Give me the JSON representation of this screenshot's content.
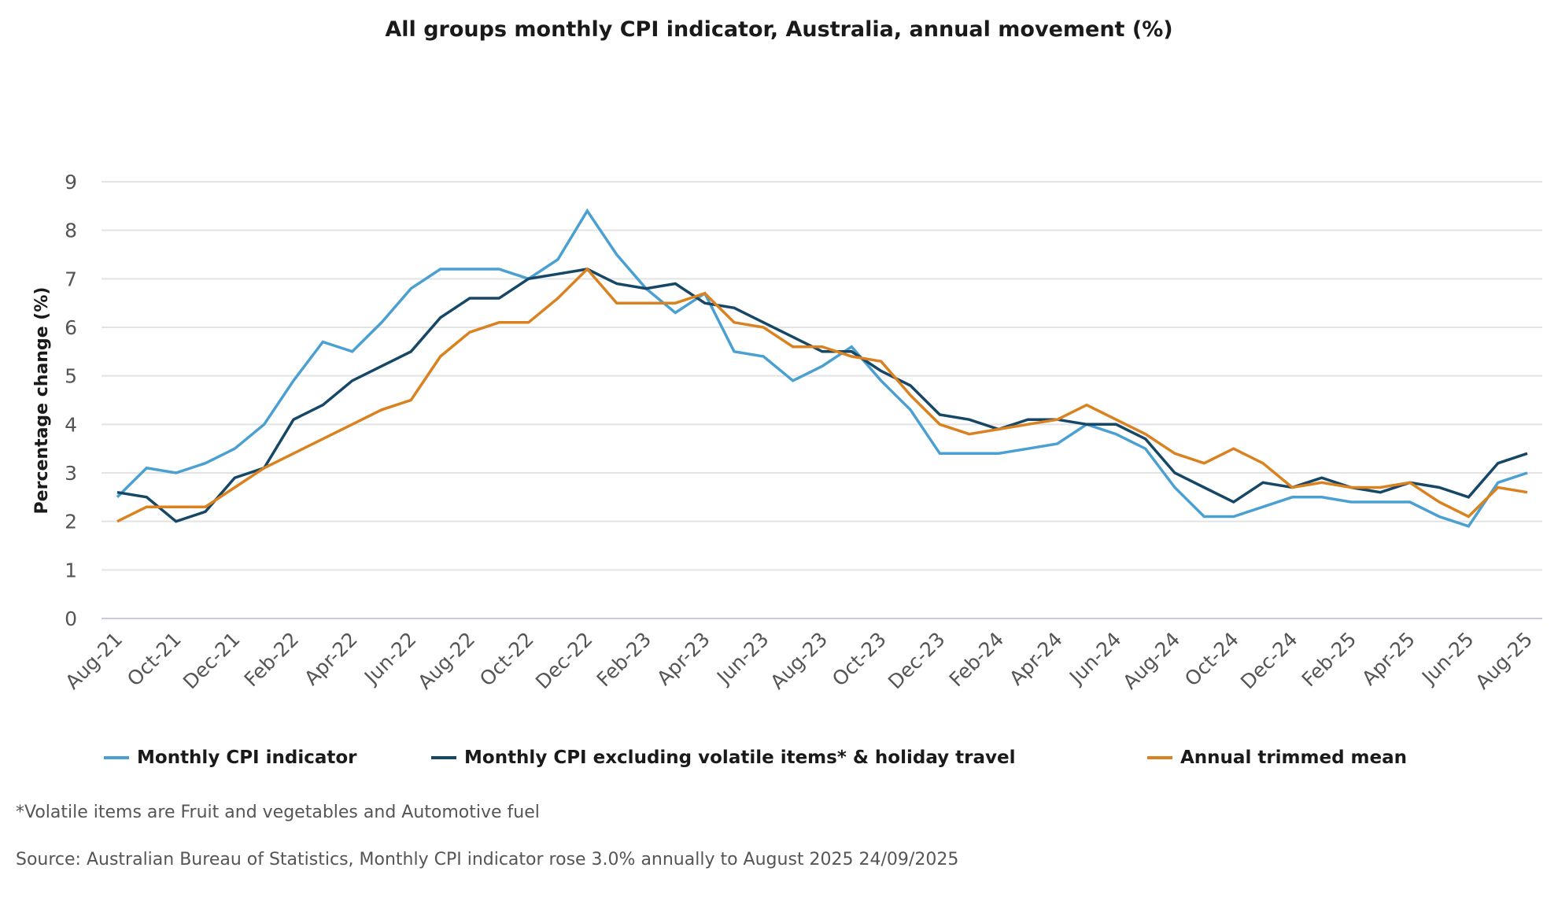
{
  "chart_data": {
    "type": "line",
    "title": "All groups monthly CPI indicator, Australia, annual movement (%)",
    "ylabel": "Percentage change (%)",
    "xlabel": "",
    "ylim": [
      0,
      9
    ],
    "yticks": [
      "0",
      "1",
      "2",
      "3",
      "4",
      "5",
      "6",
      "7",
      "8",
      "9"
    ],
    "grid": true,
    "legend_position": "bottom",
    "x": [
      "Aug-21",
      "Sep-21",
      "Oct-21",
      "Nov-21",
      "Dec-21",
      "Jan-22",
      "Feb-22",
      "Mar-22",
      "Apr-22",
      "May-22",
      "Jun-22",
      "Jul-22",
      "Aug-22",
      "Sep-22",
      "Oct-22",
      "Nov-22",
      "Dec-22",
      "Jan-23",
      "Feb-23",
      "Mar-23",
      "Apr-23",
      "May-23",
      "Jun-23",
      "Jul-23",
      "Aug-23",
      "Sep-23",
      "Oct-23",
      "Nov-23",
      "Dec-23",
      "Jan-24",
      "Feb-24",
      "Mar-24",
      "Apr-24",
      "May-24",
      "Jun-24",
      "Jul-24",
      "Aug-24",
      "Sep-24",
      "Oct-24",
      "Nov-24",
      "Dec-24",
      "Jan-25",
      "Feb-25",
      "Mar-25",
      "Apr-25",
      "May-25",
      "Jun-25",
      "Jul-25",
      "Aug-25"
    ],
    "xtick_labels": [
      "Aug-21",
      "Oct-21",
      "Dec-21",
      "Feb-22",
      "Apr-22",
      "Jun-22",
      "Aug-22",
      "Oct-22",
      "Dec-22",
      "Feb-23",
      "Apr-23",
      "Jun-23",
      "Aug-23",
      "Oct-23",
      "Dec-23",
      "Feb-24",
      "Apr-24",
      "Jun-24",
      "Aug-24",
      "Oct-24",
      "Dec-24",
      "Feb-25",
      "Apr-25",
      "Jun-25",
      "Aug-25"
    ],
    "series": [
      {
        "name": "Monthly CPI indicator",
        "color": "#4aa0d0",
        "values": [
          2.5,
          3.1,
          3.0,
          3.2,
          3.5,
          4.0,
          4.9,
          5.7,
          5.5,
          6.1,
          6.8,
          7.2,
          7.2,
          7.2,
          7.0,
          7.4,
          8.4,
          7.5,
          6.8,
          6.3,
          6.7,
          5.5,
          5.4,
          4.9,
          5.2,
          5.6,
          4.9,
          4.3,
          3.4,
          3.4,
          3.4,
          3.5,
          3.6,
          4.0,
          3.8,
          3.5,
          2.7,
          2.1,
          2.1,
          2.3,
          2.5,
          2.5,
          2.4,
          2.4,
          2.4,
          2.1,
          1.9,
          2.8,
          3.0
        ]
      },
      {
        "name": "Monthly CPI excluding volatile items* & holiday travel",
        "color": "#164766",
        "values": [
          2.6,
          2.5,
          2.0,
          2.2,
          2.9,
          3.1,
          4.1,
          4.4,
          4.9,
          5.2,
          5.5,
          6.2,
          6.6,
          6.6,
          7.0,
          7.1,
          7.2,
          6.9,
          6.8,
          6.9,
          6.5,
          6.4,
          6.1,
          5.8,
          5.5,
          5.5,
          5.1,
          4.8,
          4.2,
          4.1,
          3.9,
          4.1,
          4.1,
          4.0,
          4.0,
          3.7,
          3.0,
          2.7,
          2.4,
          2.8,
          2.7,
          2.9,
          2.7,
          2.6,
          2.8,
          2.7,
          2.5,
          3.2,
          3.4
        ]
      },
      {
        "name": "Annual trimmed mean",
        "color": "#d9821f",
        "values": [
          2.0,
          2.3,
          2.3,
          2.3,
          2.7,
          3.1,
          3.4,
          3.7,
          4.0,
          4.3,
          4.5,
          5.4,
          5.9,
          6.1,
          6.1,
          6.6,
          7.2,
          6.5,
          6.5,
          6.5,
          6.7,
          6.1,
          6.0,
          5.6,
          5.6,
          5.4,
          5.3,
          4.6,
          4.0,
          3.8,
          3.9,
          4.0,
          4.1,
          4.4,
          4.1,
          3.8,
          3.4,
          3.2,
          3.5,
          3.2,
          2.7,
          2.8,
          2.7,
          2.7,
          2.8,
          2.4,
          2.1,
          2.7,
          2.6
        ]
      }
    ]
  },
  "footnote": "*Volatile items are Fruit and vegetables and Automotive fuel",
  "source": "Source: Australian Bureau of Statistics, Monthly CPI indicator rose 3.0% annually to August 2025 24/09/2025"
}
